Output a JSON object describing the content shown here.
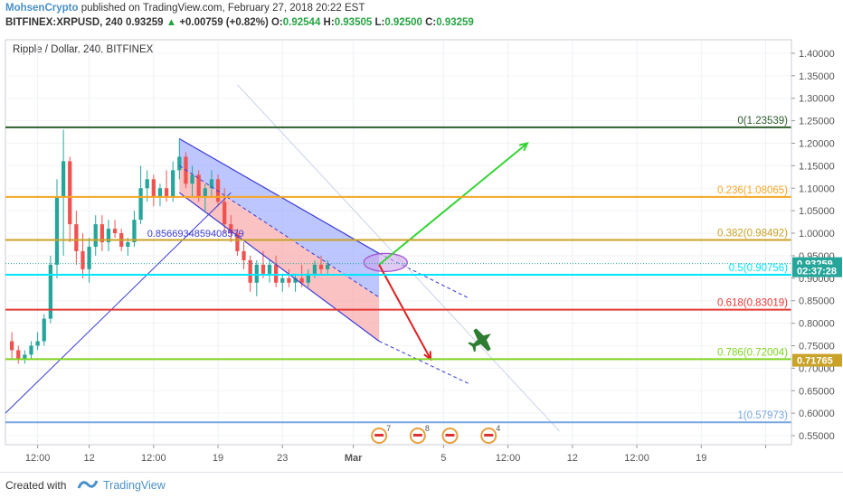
{
  "header": {
    "author": "MohsenCrypto",
    "published_text": "published on TradingView.com, February 27, 2018 20:22 EST",
    "symbol": "BITFINEX:XRPUSD, 240",
    "last": "0.93259",
    "change_arrow": "▲",
    "change": "+0.00759 (+0.82%)",
    "o_label": "O:",
    "o_value": "0.92544",
    "h_label": "H:",
    "h_value": "0.93505",
    "l_label": "L:",
    "l_value": "0.92500",
    "c_label": "C:",
    "c_value": "0.93259"
  },
  "chart_title": "Ripple / Dollar, 240, BITFINEX",
  "footer": {
    "created": "Created with",
    "brand": "TradingView",
    "logo_icon": "tradingview-logo-icon"
  },
  "colors": {
    "fib_0": "#2e5e2e",
    "fib_236": "#f5a623",
    "fib_382": "#c9a227",
    "fib_5": "#00e5ff",
    "fib_618": "#e53935",
    "fib_786": "#7ed321",
    "fib_1": "#7aa7e0",
    "bull": "#26a69a",
    "bear": "#ef5350",
    "arrow_up": "#34d334",
    "arrow_down": "#e02020",
    "plane": "#2e7d32"
  },
  "chart_data": {
    "type": "candlestick",
    "title": "Ripple / Dollar, 240, BITFINEX",
    "y_axis": {
      "ylim": [
        0.53,
        1.43
      ],
      "ticks": [
        1.4,
        1.35,
        1.3,
        1.25,
        1.2,
        1.15,
        1.1,
        1.05,
        1.0,
        0.95,
        0.9,
        0.85,
        0.8,
        0.75,
        0.7,
        0.65,
        0.6,
        0.55
      ],
      "tick_labels": [
        "1.40000",
        "1.35000",
        "1.30000",
        "1.25000",
        "1.20000",
        "1.15000",
        "1.10000",
        "1.05000",
        "1.00000",
        "0.95000",
        "0.90000",
        "0.85000",
        "0.80000",
        "0.75000",
        "0.70000",
        "0.65000",
        "0.60000",
        "0.55000"
      ]
    },
    "x_axis": {
      "ticks": [
        5,
        13,
        23,
        33,
        43,
        54,
        68,
        78,
        88,
        98,
        108,
        118
      ],
      "tick_labels": [
        "12:00",
        "12",
        "12:00",
        "19",
        "23",
        "Mar",
        "5",
        "12:00",
        "12",
        "12:00",
        "19",
        ""
      ]
    },
    "fib_levels": [
      {
        "ratio": "0",
        "price": 1.23539,
        "label": "0(1.23539)",
        "color_key": "fib_0"
      },
      {
        "ratio": "0.236",
        "price": 1.08065,
        "label": "0.236(1.08065)",
        "color_key": "fib_236"
      },
      {
        "ratio": "0.382",
        "price": 0.98492,
        "label": "0.382(0.98492)",
        "color_key": "fib_382"
      },
      {
        "ratio": "0.5",
        "price": 0.90756,
        "label": "0.5(0.90756)",
        "color_key": "fib_5"
      },
      {
        "ratio": "0.618",
        "price": 0.83019,
        "label": "0.618(0.83019)",
        "color_key": "fib_618"
      },
      {
        "ratio": "0.786",
        "price": 0.72004,
        "label": "0.786(0.72004)",
        "color_key": "fib_786"
      },
      {
        "ratio": "1",
        "price": 0.57973,
        "label": "1(0.57973)",
        "color_key": "fib_1"
      }
    ],
    "price_tags": [
      {
        "price": 0.93259,
        "label": "0.93259",
        "bg": "#26a69a"
      },
      {
        "price": 0.9165,
        "label": "02:37:28",
        "bg": "#26a69a"
      },
      {
        "price": 0.71765,
        "label": "0.71765",
        "bg": "#c9a227"
      }
    ],
    "annotations": [
      {
        "text": "0.856693485940857 9",
        "display": "0.8566934859408579",
        "x": 22,
        "price": 1.0
      }
    ],
    "event_markers": [
      {
        "x": 58,
        "label": "",
        "count": "7"
      },
      {
        "x": 64,
        "label": "",
        "count": "8"
      },
      {
        "x": 69,
        "label": "",
        "count": ""
      },
      {
        "x": 75,
        "label": "",
        "count": "4"
      }
    ],
    "channel": {
      "upper": [
        [
          27,
          1.21
        ],
        [
          58,
          0.955
        ]
      ],
      "lower": [
        [
          27,
          1.09
        ],
        [
          58,
          0.76
        ]
      ],
      "upper_ext": [
        [
          58,
          0.955
        ],
        [
          72,
          0.855
        ]
      ],
      "lower_ext": [
        [
          58,
          0.76
        ],
        [
          72,
          0.665
        ]
      ]
    },
    "arrows": [
      {
        "from": [
          58,
          0.93
        ],
        "to": [
          81,
          1.2
        ],
        "color_key": "arrow_up"
      },
      {
        "from": [
          58,
          0.93
        ],
        "to": [
          66,
          0.72
        ],
        "color_key": "arrow_down"
      }
    ],
    "candles": [
      {
        "x": 1,
        "o": 0.76,
        "h": 0.78,
        "l": 0.72,
        "c": 0.74
      },
      {
        "x": 2,
        "o": 0.74,
        "h": 0.75,
        "l": 0.71,
        "c": 0.72
      },
      {
        "x": 3,
        "o": 0.72,
        "h": 0.74,
        "l": 0.71,
        "c": 0.73
      },
      {
        "x": 4,
        "o": 0.73,
        "h": 0.76,
        "l": 0.72,
        "c": 0.75
      },
      {
        "x": 5,
        "o": 0.75,
        "h": 0.78,
        "l": 0.74,
        "c": 0.76
      },
      {
        "x": 6,
        "o": 0.76,
        "h": 0.82,
        "l": 0.75,
        "c": 0.81
      },
      {
        "x": 7,
        "o": 0.81,
        "h": 0.95,
        "l": 0.8,
        "c": 0.93
      },
      {
        "x": 8,
        "o": 0.93,
        "h": 1.12,
        "l": 0.9,
        "c": 1.08
      },
      {
        "x": 9,
        "o": 1.08,
        "h": 1.23,
        "l": 0.95,
        "c": 1.16
      },
      {
        "x": 10,
        "o": 1.16,
        "h": 1.17,
        "l": 0.98,
        "c": 1.02
      },
      {
        "x": 11,
        "o": 1.02,
        "h": 1.05,
        "l": 0.93,
        "c": 0.96
      },
      {
        "x": 12,
        "o": 0.96,
        "h": 1.0,
        "l": 0.9,
        "c": 0.92
      },
      {
        "x": 13,
        "o": 0.92,
        "h": 0.99,
        "l": 0.89,
        "c": 0.97
      },
      {
        "x": 14,
        "o": 0.97,
        "h": 1.04,
        "l": 0.95,
        "c": 1.02
      },
      {
        "x": 15,
        "o": 1.02,
        "h": 1.04,
        "l": 0.96,
        "c": 0.98
      },
      {
        "x": 16,
        "o": 0.98,
        "h": 1.03,
        "l": 0.96,
        "c": 1.01
      },
      {
        "x": 17,
        "o": 1.01,
        "h": 1.03,
        "l": 0.99,
        "c": 1.0
      },
      {
        "x": 18,
        "o": 1.0,
        "h": 1.01,
        "l": 0.96,
        "c": 0.97
      },
      {
        "x": 19,
        "o": 0.97,
        "h": 0.99,
        "l": 0.95,
        "c": 0.98
      },
      {
        "x": 20,
        "o": 0.98,
        "h": 1.05,
        "l": 0.97,
        "c": 1.03
      },
      {
        "x": 21,
        "o": 1.03,
        "h": 1.15,
        "l": 1.02,
        "c": 1.1
      },
      {
        "x": 22,
        "o": 1.1,
        "h": 1.14,
        "l": 1.07,
        "c": 1.12
      },
      {
        "x": 23,
        "o": 1.12,
        "h": 1.13,
        "l": 1.06,
        "c": 1.08
      },
      {
        "x": 24,
        "o": 1.08,
        "h": 1.11,
        "l": 1.06,
        "c": 1.1
      },
      {
        "x": 25,
        "o": 1.1,
        "h": 1.14,
        "l": 1.07,
        "c": 1.08
      },
      {
        "x": 26,
        "o": 1.08,
        "h": 1.16,
        "l": 1.07,
        "c": 1.14
      },
      {
        "x": 27,
        "o": 1.14,
        "h": 1.21,
        "l": 1.12,
        "c": 1.17
      },
      {
        "x": 28,
        "o": 1.17,
        "h": 1.18,
        "l": 1.1,
        "c": 1.11
      },
      {
        "x": 29,
        "o": 1.11,
        "h": 1.15,
        "l": 1.08,
        "c": 1.13
      },
      {
        "x": 30,
        "o": 1.13,
        "h": 1.14,
        "l": 1.07,
        "c": 1.08
      },
      {
        "x": 31,
        "o": 1.08,
        "h": 1.11,
        "l": 1.05,
        "c": 1.1
      },
      {
        "x": 32,
        "o": 1.1,
        "h": 1.14,
        "l": 1.08,
        "c": 1.12
      },
      {
        "x": 33,
        "o": 1.12,
        "h": 1.13,
        "l": 1.06,
        "c": 1.07
      },
      {
        "x": 34,
        "o": 1.07,
        "h": 1.1,
        "l": 1.0,
        "c": 1.02
      },
      {
        "x": 35,
        "o": 1.02,
        "h": 1.04,
        "l": 0.98,
        "c": 1.0
      },
      {
        "x": 36,
        "o": 1.0,
        "h": 1.01,
        "l": 0.95,
        "c": 0.96
      },
      {
        "x": 37,
        "o": 0.96,
        "h": 0.98,
        "l": 0.92,
        "c": 0.94
      },
      {
        "x": 38,
        "o": 0.94,
        "h": 0.95,
        "l": 0.87,
        "c": 0.89
      },
      {
        "x": 39,
        "o": 0.89,
        "h": 0.94,
        "l": 0.86,
        "c": 0.93
      },
      {
        "x": 40,
        "o": 0.93,
        "h": 0.96,
        "l": 0.9,
        "c": 0.91
      },
      {
        "x": 41,
        "o": 0.91,
        "h": 0.94,
        "l": 0.89,
        "c": 0.93
      },
      {
        "x": 42,
        "o": 0.93,
        "h": 0.95,
        "l": 0.88,
        "c": 0.89
      },
      {
        "x": 43,
        "o": 0.89,
        "h": 0.91,
        "l": 0.87,
        "c": 0.9
      },
      {
        "x": 44,
        "o": 0.9,
        "h": 0.92,
        "l": 0.88,
        "c": 0.89
      },
      {
        "x": 45,
        "o": 0.89,
        "h": 0.91,
        "l": 0.87,
        "c": 0.9
      },
      {
        "x": 46,
        "o": 0.9,
        "h": 0.93,
        "l": 0.88,
        "c": 0.89
      },
      {
        "x": 47,
        "o": 0.89,
        "h": 0.92,
        "l": 0.88,
        "c": 0.91
      },
      {
        "x": 48,
        "o": 0.91,
        "h": 0.94,
        "l": 0.9,
        "c": 0.93
      },
      {
        "x": 49,
        "o": 0.93,
        "h": 0.95,
        "l": 0.91,
        "c": 0.92
      },
      {
        "x": 50,
        "o": 0.92,
        "h": 0.94,
        "l": 0.91,
        "c": 0.93
      }
    ]
  }
}
